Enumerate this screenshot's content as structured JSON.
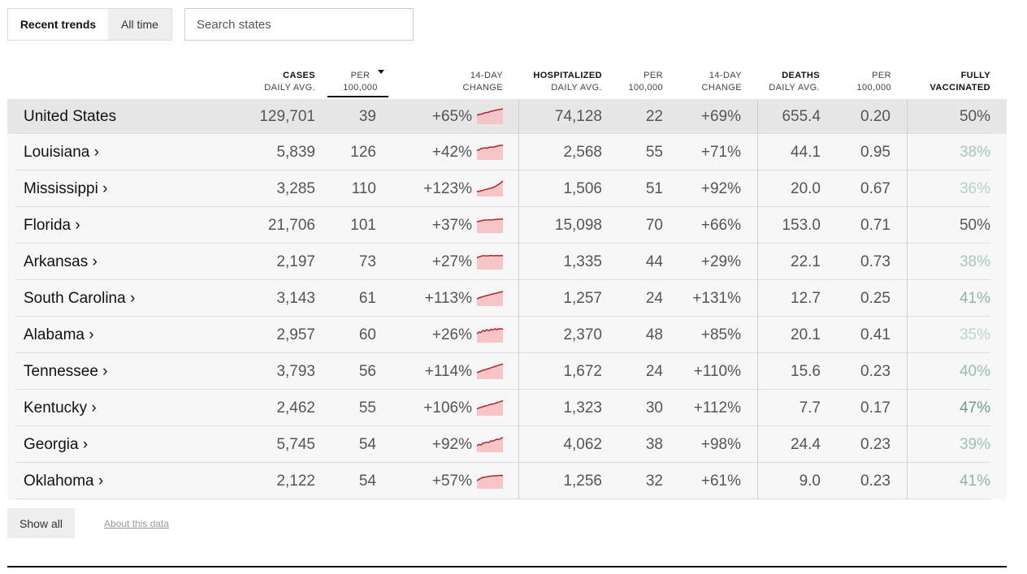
{
  "toggle": {
    "recent_label": "Recent trends",
    "all_label": "All time"
  },
  "search": {
    "placeholder": "Search states"
  },
  "headers": {
    "cases": {
      "title": "CASES",
      "sub": "DAILY AVG."
    },
    "cases_per": {
      "title": "PER",
      "sub": "100,000"
    },
    "cases_change": {
      "title": "14-DAY",
      "sub": "CHANGE"
    },
    "hosp": {
      "title": "HOSPITALIZED",
      "sub": "DAILY AVG."
    },
    "hosp_per": {
      "title": "PER",
      "sub": "100,000"
    },
    "hosp_change": {
      "title": "14-DAY",
      "sub": "CHANGE"
    },
    "deaths": {
      "title": "DEATHS",
      "sub": "DAILY AVG."
    },
    "deaths_per": {
      "title": "PER",
      "sub": "100,000"
    },
    "vacc": {
      "title": "FULLY",
      "sub": "VACCINATED"
    }
  },
  "colors": {
    "spark_line": "#b8232b",
    "spark_fill": "#f5c5c7"
  },
  "rows": [
    {
      "name": "United States",
      "cases": "129,701",
      "cases_per": "39",
      "cases_change": "+65%",
      "hosp": "74,128",
      "hosp_per": "22",
      "hosp_change": "+69%",
      "deaths": "655.4",
      "deaths_per": "0.20",
      "vacc": "50%",
      "vacc_color": "#555555",
      "spark": [
        0.55,
        0.6,
        0.62,
        0.65,
        0.7,
        0.72,
        0.75,
        0.8,
        0.82,
        0.85,
        0.88,
        0.9,
        0.92,
        0.95
      ]
    },
    {
      "name": "Louisiana ›",
      "cases": "5,839",
      "cases_per": "126",
      "cases_change": "+42%",
      "hosp": "2,568",
      "hosp_per": "55",
      "hosp_change": "+71%",
      "deaths": "44.1",
      "deaths_per": "0.95",
      "vacc": "38%",
      "vacc_color": "#a8c9b8",
      "spark": [
        0.6,
        0.62,
        0.7,
        0.72,
        0.75,
        0.72,
        0.78,
        0.8,
        0.78,
        0.82,
        0.85,
        0.88,
        0.9,
        0.9
      ]
    },
    {
      "name": "Mississippi ›",
      "cases": "3,285",
      "cases_per": "110",
      "cases_change": "+123%",
      "hosp": "1,506",
      "hosp_per": "51",
      "hosp_change": "+92%",
      "deaths": "20.0",
      "deaths_per": "0.67",
      "vacc": "36%",
      "vacc_color": "#b5d1c3",
      "spark": [
        0.3,
        0.32,
        0.35,
        0.38,
        0.42,
        0.45,
        0.48,
        0.5,
        0.55,
        0.6,
        0.68,
        0.75,
        0.85,
        0.95
      ]
    },
    {
      "name": "Florida ›",
      "cases": "21,706",
      "cases_per": "101",
      "cases_change": "+37%",
      "hosp": "15,098",
      "hosp_per": "70",
      "hosp_change": "+66%",
      "deaths": "153.0",
      "deaths_per": "0.71",
      "vacc": "50%",
      "vacc_color": "#555555",
      "spark": [
        0.7,
        0.72,
        0.75,
        0.78,
        0.8,
        0.8,
        0.82,
        0.8,
        0.82,
        0.83,
        0.84,
        0.85,
        0.85,
        0.86
      ]
    },
    {
      "name": "Arkansas ›",
      "cases": "2,197",
      "cases_per": "73",
      "cases_change": "+27%",
      "hosp": "1,335",
      "hosp_per": "44",
      "hosp_change": "+29%",
      "deaths": "22.1",
      "deaths_per": "0.73",
      "vacc": "38%",
      "vacc_color": "#a8c9b8",
      "spark": [
        0.72,
        0.78,
        0.82,
        0.85,
        0.85,
        0.84,
        0.85,
        0.86,
        0.85,
        0.85,
        0.86,
        0.85,
        0.86,
        0.85
      ]
    },
    {
      "name": "South Carolina ›",
      "cases": "3,143",
      "cases_per": "61",
      "cases_change": "+113%",
      "hosp": "1,257",
      "hosp_per": "24",
      "hosp_change": "+131%",
      "deaths": "12.7",
      "deaths_per": "0.25",
      "vacc": "41%",
      "vacc_color": "#8fb9a4",
      "spark": [
        0.45,
        0.5,
        0.55,
        0.58,
        0.62,
        0.65,
        0.68,
        0.72,
        0.75,
        0.78,
        0.8,
        0.84,
        0.86,
        0.9
      ]
    },
    {
      "name": "Alabama ›",
      "cases": "2,957",
      "cases_per": "60",
      "cases_change": "+26%",
      "hosp": "2,370",
      "hosp_per": "48",
      "hosp_change": "+85%",
      "deaths": "20.1",
      "deaths_per": "0.41",
      "vacc": "35%",
      "vacc_color": "#bcd6c9",
      "spark": [
        0.55,
        0.65,
        0.62,
        0.75,
        0.7,
        0.8,
        0.72,
        0.82,
        0.78,
        0.85,
        0.8,
        0.86,
        0.84,
        0.85
      ]
    },
    {
      "name": "Tennessee ›",
      "cases": "3,793",
      "cases_per": "56",
      "cases_change": "+114%",
      "hosp": "1,672",
      "hosp_per": "24",
      "hosp_change": "+110%",
      "deaths": "15.6",
      "deaths_per": "0.23",
      "vacc": "40%",
      "vacc_color": "#98bfab",
      "spark": [
        0.4,
        0.45,
        0.5,
        0.55,
        0.58,
        0.62,
        0.65,
        0.7,
        0.74,
        0.78,
        0.82,
        0.86,
        0.9,
        0.93
      ]
    },
    {
      "name": "Kentucky ›",
      "cases": "2,462",
      "cases_per": "55",
      "cases_change": "+106%",
      "hosp": "1,323",
      "hosp_per": "30",
      "hosp_change": "+112%",
      "deaths": "7.7",
      "deaths_per": "0.17",
      "vacc": "47%",
      "vacc_color": "#6f9e88",
      "spark": [
        0.42,
        0.48,
        0.52,
        0.55,
        0.6,
        0.62,
        0.66,
        0.7,
        0.72,
        0.76,
        0.8,
        0.84,
        0.88,
        0.92
      ]
    },
    {
      "name": "Georgia ›",
      "cases": "5,745",
      "cases_per": "54",
      "cases_change": "+92%",
      "hosp": "4,062",
      "hosp_per": "38",
      "hosp_change": "+98%",
      "deaths": "24.4",
      "deaths_per": "0.23",
      "vacc": "39%",
      "vacc_color": "#a0c4b1",
      "spark": [
        0.4,
        0.48,
        0.45,
        0.55,
        0.58,
        0.62,
        0.6,
        0.7,
        0.68,
        0.75,
        0.8,
        0.78,
        0.85,
        0.9
      ]
    },
    {
      "name": "Oklahoma ›",
      "cases": "2,122",
      "cases_per": "54",
      "cases_change": "+57%",
      "hosp": "1,256",
      "hosp_per": "32",
      "hosp_change": "+61%",
      "deaths": "9.0",
      "deaths_per": "0.23",
      "vacc": "41%",
      "vacc_color": "#8fb9a4",
      "spark": [
        0.5,
        0.58,
        0.65,
        0.7,
        0.72,
        0.74,
        0.76,
        0.78,
        0.78,
        0.8,
        0.8,
        0.82,
        0.82,
        0.82
      ]
    }
  ],
  "footer": {
    "show_all": "Show all",
    "about": "About this data"
  }
}
